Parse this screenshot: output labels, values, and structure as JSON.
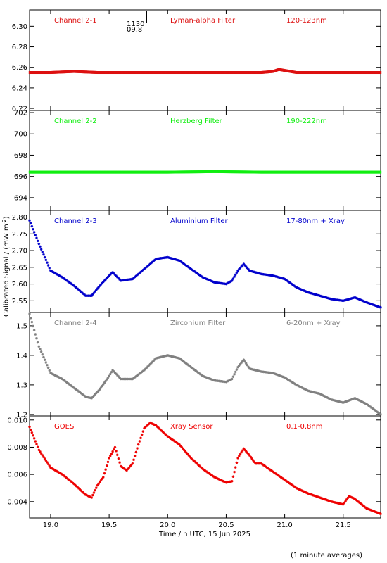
{
  "colors": {
    "ch1": "#dd1111",
    "ch2": "#11ee11",
    "ch3": "#0000cc",
    "ch4": "#808080",
    "goes": "#ee0000"
  },
  "axis": {
    "ylabel": "Calibrated Signal / (mW m",
    "ylabel_sup": "-2",
    "ylabel_close": ")",
    "xlabel": "Time / h UTC, 15 Jun 2025",
    "footnote": "(1 minute averages)"
  },
  "marker": {
    "line1": "1130",
    "line2": "09.8"
  },
  "chart_data": [
    {
      "type": "scatter",
      "name": "Channel 2-1",
      "filter": "Lyman-alpha Filter",
      "band": "120-123nm",
      "color": "ch1",
      "xlim": [
        18.82,
        21.82
      ],
      "ylim": [
        6.218,
        6.316
      ],
      "yticks": [
        "6.22",
        "6.24",
        "6.26",
        "6.28",
        "6.30"
      ],
      "x": [
        18.82,
        19.0,
        19.2,
        19.4,
        19.6,
        19.8,
        20.0,
        20.2,
        20.4,
        20.6,
        20.8,
        20.9,
        20.95,
        21.0,
        21.1,
        21.3,
        21.5,
        21.7,
        21.82
      ],
      "y": [
        6.255,
        6.255,
        6.256,
        6.255,
        6.255,
        6.255,
        6.255,
        6.255,
        6.255,
        6.255,
        6.255,
        6.256,
        6.258,
        6.257,
        6.255,
        6.255,
        6.255,
        6.255,
        6.255
      ]
    },
    {
      "type": "scatter",
      "name": "Channel 2-2",
      "filter": "Herzberg Filter",
      "band": "190-222nm",
      "color": "ch2",
      "xlim": [
        18.82,
        21.82
      ],
      "ylim": [
        692.8,
        702.2
      ],
      "yticks": [
        "694",
        "696",
        "698",
        "700",
        "702"
      ],
      "x": [
        18.82,
        19.2,
        19.6,
        20.0,
        20.4,
        20.8,
        21.2,
        21.6,
        21.82
      ],
      "y": [
        696.4,
        696.4,
        696.4,
        696.4,
        696.45,
        696.4,
        696.4,
        696.4,
        696.4
      ]
    },
    {
      "type": "scatter",
      "name": "Channel 2-3",
      "filter": "Aluminium Filter",
      "band": "17-80nm + Xray",
      "color": "ch3",
      "xlim": [
        18.82,
        21.82
      ],
      "ylim": [
        2.515,
        2.82
      ],
      "yticks": [
        "2.55",
        "2.60",
        "2.65",
        "2.70",
        "2.75",
        "2.80"
      ],
      "x": [
        18.82,
        18.9,
        19.0,
        19.1,
        19.2,
        19.3,
        19.35,
        19.42,
        19.5,
        19.53,
        19.6,
        19.7,
        19.8,
        19.9,
        20.0,
        20.1,
        20.2,
        20.3,
        20.4,
        20.5,
        20.55,
        20.6,
        20.65,
        20.7,
        20.75,
        20.8,
        20.9,
        21.0,
        21.1,
        21.2,
        21.3,
        21.4,
        21.5,
        21.6,
        21.7,
        21.82
      ],
      "y": [
        2.79,
        2.72,
        2.64,
        2.62,
        2.595,
        2.565,
        2.565,
        2.595,
        2.625,
        2.635,
        2.61,
        2.615,
        2.645,
        2.675,
        2.68,
        2.67,
        2.645,
        2.62,
        2.605,
        2.6,
        2.61,
        2.64,
        2.66,
        2.64,
        2.635,
        2.63,
        2.625,
        2.615,
        2.59,
        2.575,
        2.565,
        2.555,
        2.55,
        2.56,
        2.545,
        2.53
      ]
    },
    {
      "type": "scatter",
      "name": "Channel 2-4",
      "filter": "Zirconium Filter",
      "band": "6-20nm + Xray",
      "color": "ch4",
      "xlim": [
        18.82,
        21.82
      ],
      "ylim": [
        1.195,
        1.545
      ],
      "yticks": [
        "1.2",
        "1.3",
        "1.4",
        "1.5"
      ],
      "x": [
        18.82,
        18.9,
        19.0,
        19.1,
        19.2,
        19.3,
        19.35,
        19.42,
        19.5,
        19.53,
        19.6,
        19.7,
        19.8,
        19.9,
        20.0,
        20.1,
        20.2,
        20.3,
        20.4,
        20.5,
        20.55,
        20.6,
        20.65,
        20.7,
        20.75,
        20.8,
        20.9,
        21.0,
        21.1,
        21.2,
        21.3,
        21.4,
        21.5,
        21.6,
        21.7,
        21.82
      ],
      "y": [
        1.54,
        1.43,
        1.34,
        1.32,
        1.29,
        1.26,
        1.255,
        1.285,
        1.33,
        1.35,
        1.32,
        1.32,
        1.35,
        1.39,
        1.4,
        1.39,
        1.36,
        1.33,
        1.315,
        1.31,
        1.32,
        1.36,
        1.385,
        1.355,
        1.35,
        1.345,
        1.34,
        1.325,
        1.3,
        1.28,
        1.27,
        1.25,
        1.24,
        1.255,
        1.235,
        1.2
      ]
    },
    {
      "type": "scatter",
      "name": "GOES",
      "filter": "Xray Sensor",
      "band": "0.1-0.8nm",
      "color": "goes",
      "xlim": [
        18.82,
        21.82
      ],
      "ylim": [
        0.0028,
        0.0103
      ],
      "yticks": [
        "0.004",
        "0.006",
        "0.008",
        "0.010"
      ],
      "x": [
        18.82,
        18.9,
        19.0,
        19.1,
        19.2,
        19.3,
        19.35,
        19.4,
        19.45,
        19.5,
        19.55,
        19.6,
        19.65,
        19.7,
        19.75,
        19.8,
        19.85,
        19.9,
        20.0,
        20.1,
        20.2,
        20.3,
        20.4,
        20.5,
        20.55,
        20.6,
        20.65,
        20.7,
        20.75,
        20.8,
        20.9,
        21.0,
        21.1,
        21.2,
        21.3,
        21.4,
        21.5,
        21.55,
        21.6,
        21.7,
        21.82
      ],
      "y": [
        0.0095,
        0.0078,
        0.0065,
        0.006,
        0.0053,
        0.0045,
        0.0043,
        0.0052,
        0.0058,
        0.0072,
        0.008,
        0.0066,
        0.0063,
        0.0068,
        0.0082,
        0.0094,
        0.0098,
        0.0096,
        0.0088,
        0.0082,
        0.0072,
        0.0064,
        0.0058,
        0.0054,
        0.0055,
        0.0072,
        0.0079,
        0.0074,
        0.0068,
        0.0068,
        0.0062,
        0.0056,
        0.005,
        0.0046,
        0.0043,
        0.004,
        0.0038,
        0.0044,
        0.0042,
        0.0035,
        0.0031
      ]
    }
  ],
  "xaxis": {
    "ticks": [
      19.0,
      19.5,
      20.0,
      20.5,
      21.0,
      21.5
    ],
    "labels": [
      "19.0",
      "19.5",
      "20.0",
      "20.5",
      "21.0",
      "21.5"
    ]
  }
}
